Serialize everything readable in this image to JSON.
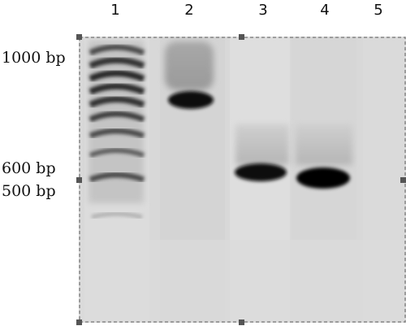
{
  "lanes": [
    "1",
    "2",
    "3",
    "4",
    "5"
  ],
  "size_labels": {
    "l1000": "1000 bp",
    "l600": "600 bp",
    "l500": "500 bp"
  },
  "colors": {
    "gel": "#d9d9d9",
    "band": "#0b0b0b",
    "border": "#888888"
  }
}
